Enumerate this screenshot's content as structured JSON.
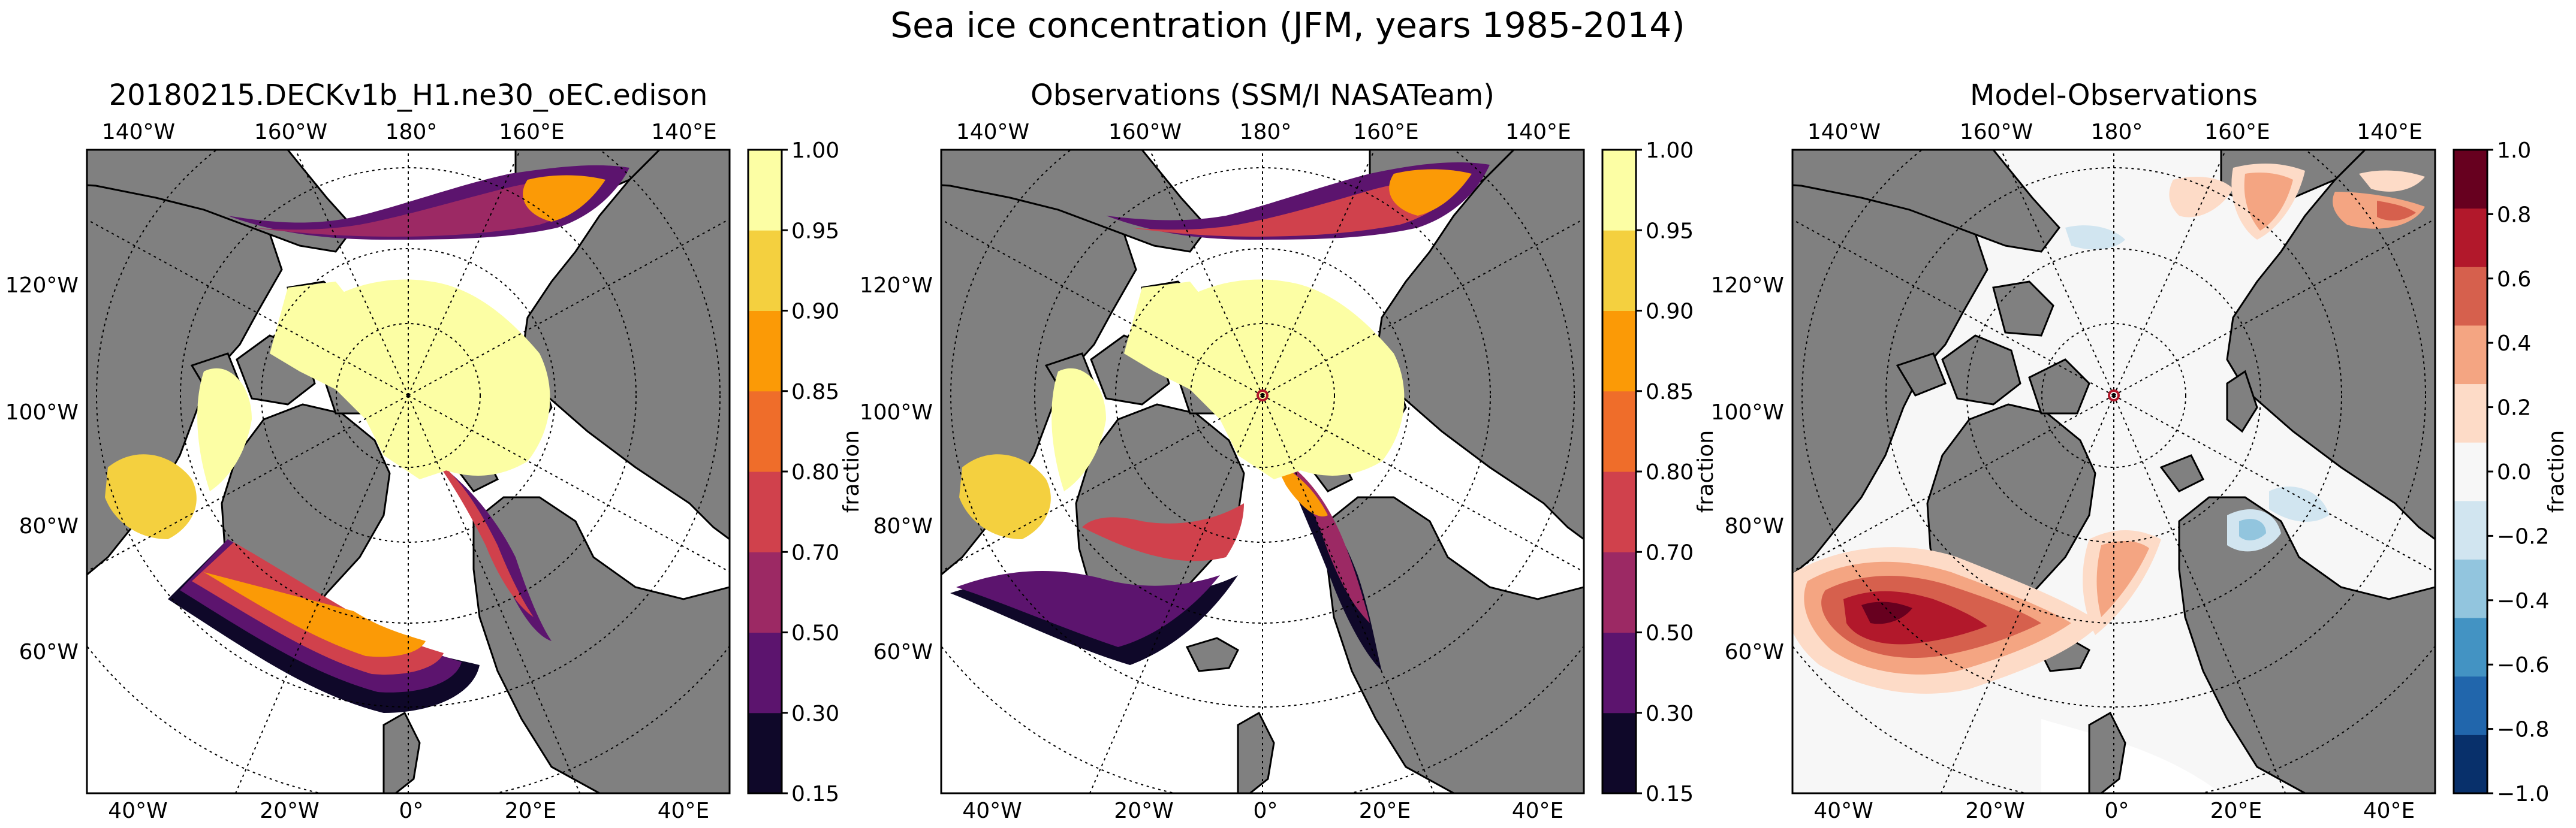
{
  "figure": {
    "title": "Sea ice concentration (JFM, years 1985-2014)",
    "colors": {
      "land": "#808080",
      "frame": "#000000"
    }
  },
  "panels": [
    {
      "title": "20180215.DECKv1b_H1.ne30_oEC.edison",
      "colorbar": {
        "label": "fraction",
        "ticks": [
          "0.15",
          "0.30",
          "0.50",
          "0.70",
          "0.80",
          "0.85",
          "0.90",
          "0.95",
          "1.00"
        ],
        "colors": [
          "#0f0829",
          "#5c146e",
          "#9c2964",
          "#d0414c",
          "#ef6d2a",
          "#fb9a06",
          "#f4d03f",
          "#fcfea4"
        ]
      }
    },
    {
      "title": "Observations (SSM/I NASATeam)",
      "colorbar": {
        "label": "fraction",
        "ticks": [
          "0.15",
          "0.30",
          "0.50",
          "0.70",
          "0.80",
          "0.85",
          "0.90",
          "0.95",
          "1.00"
        ],
        "colors": [
          "#0f0829",
          "#5c146e",
          "#9c2964",
          "#d0414c",
          "#ef6d2a",
          "#fb9a06",
          "#f4d03f",
          "#fcfea4"
        ]
      }
    },
    {
      "title": "Model-Observations",
      "colorbar": {
        "label": "fraction",
        "ticks": [
          "−1.0",
          "−0.8",
          "−0.6",
          "−0.4",
          "−0.2",
          "0.0",
          "0.2",
          "0.4",
          "0.6",
          "0.8",
          "1.0"
        ],
        "colors": [
          "#08306b",
          "#2166ac",
          "#4393c3",
          "#92c5de",
          "#d1e5f0",
          "#f7f7f7",
          "#fddbc7",
          "#f4a582",
          "#d6604d",
          "#b2182b",
          "#67001f"
        ]
      }
    }
  ],
  "axis_labels": {
    "top": [
      "140°W",
      "160°W",
      "180°",
      "160°E",
      "140°E"
    ],
    "left": [
      "120°W",
      "100°W",
      "80°W",
      "60°W"
    ],
    "bottom": [
      "40°W",
      "20°W",
      "0°",
      "20°E",
      "40°E"
    ]
  }
}
